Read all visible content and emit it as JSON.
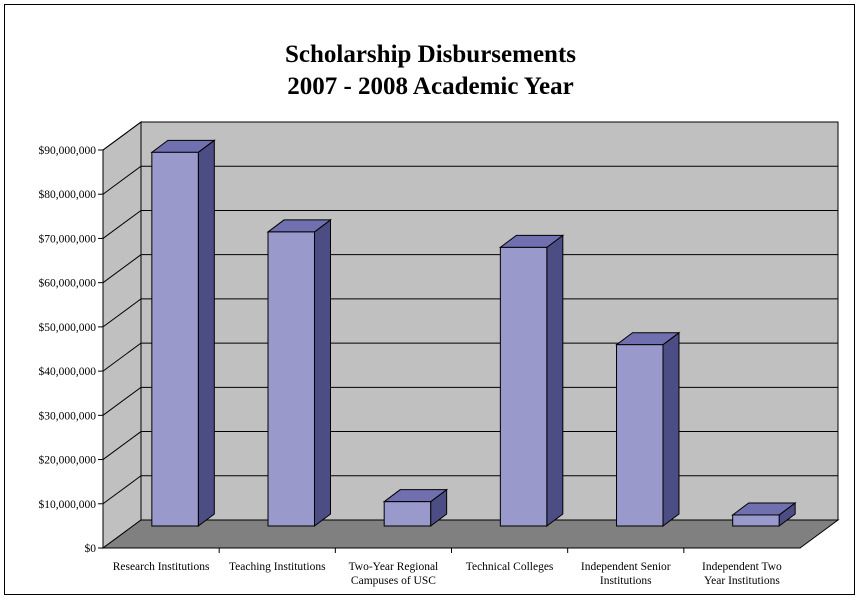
{
  "chart_data": {
    "type": "bar",
    "title": [
      "Scholarship Disbursements",
      "2007 - 2008 Academic Year"
    ],
    "xlabel": "",
    "ylabel": "",
    "categories": [
      "Research Institutions",
      "Teaching Institutions",
      "Two-Year Regional Campuses of USC",
      "Technical Colleges",
      "Independent Senior Institutions",
      "Independent Two Year Institutions"
    ],
    "category_lines": [
      [
        "Research Institutions"
      ],
      [
        "Teaching Institutions"
      ],
      [
        "Two-Year Regional",
        "Campuses of USC"
      ],
      [
        "Technical Colleges"
      ],
      [
        "Independent Senior",
        "Institutions"
      ],
      [
        "Independent Two",
        "Year Institutions"
      ]
    ],
    "values": [
      84500000,
      66500000,
      5500000,
      63000000,
      41000000,
      2500000
    ],
    "ylim": [
      0,
      90000000
    ],
    "yticks": [
      0,
      10000000,
      20000000,
      30000000,
      40000000,
      50000000,
      60000000,
      70000000,
      80000000,
      90000000
    ],
    "ytick_labels": [
      "$0",
      "$10,000,000",
      "$20,000,000",
      "$30,000,000",
      "$40,000,000",
      "$50,000,000",
      "$60,000,000",
      "$70,000,000",
      "$80,000,000",
      "$90,000,000"
    ],
    "grid": true,
    "style": "3d-column",
    "colors": {
      "bar_front": "#9999cc",
      "bar_side": "#4d4d85",
      "bar_top": "#7070b0",
      "wall": "#c0c0c0",
      "floor": "#808080",
      "gridline": "#000000"
    }
  }
}
